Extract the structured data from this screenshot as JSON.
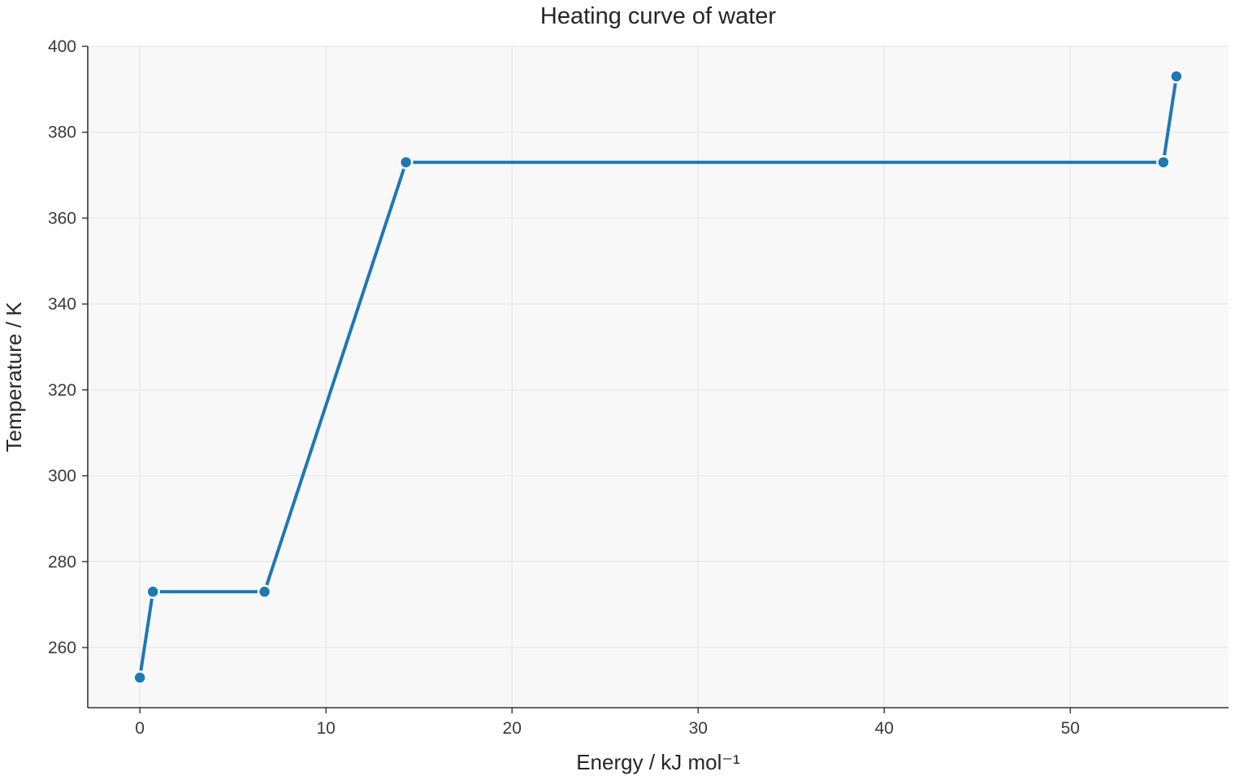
{
  "chart_data": {
    "type": "line",
    "title": "Heating curve of water",
    "xlabel": "Energy / kJ mol⁻¹",
    "ylabel": "Temperature / K",
    "xlim": [
      -2.8,
      58.5
    ],
    "ylim": [
      246,
      400
    ],
    "xticks": [
      0,
      10,
      20,
      30,
      40,
      50
    ],
    "yticks": [
      260,
      280,
      300,
      320,
      340,
      360,
      380,
      400
    ],
    "grid": true,
    "series": [
      {
        "color": "#1f77b4",
        "marker": "circle",
        "x": [
          0,
          0.7,
          6.7,
          14.3,
          55.0,
          55.7
        ],
        "y": [
          253,
          273,
          273,
          373,
          373,
          393
        ]
      }
    ]
  }
}
